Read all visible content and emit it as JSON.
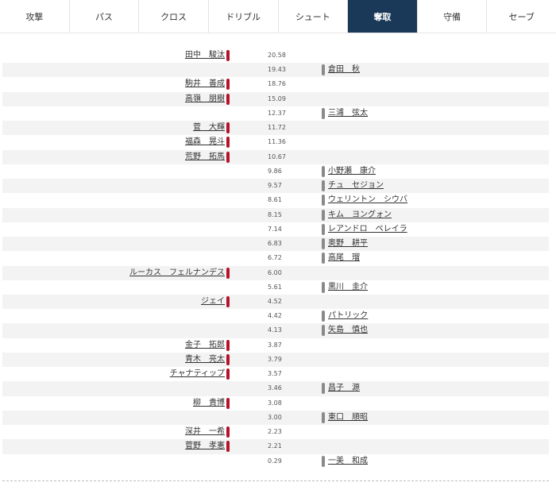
{
  "tabs": [
    {
      "label": "攻撃",
      "active": false
    },
    {
      "label": "パス",
      "active": false
    },
    {
      "label": "クロス",
      "active": false
    },
    {
      "label": "ドリブル",
      "active": false
    },
    {
      "label": "シュート",
      "active": false
    },
    {
      "label": "奪取",
      "active": true
    },
    {
      "label": "守備",
      "active": false
    },
    {
      "label": "セーブ",
      "active": false
    }
  ],
  "colors": {
    "active_tab_bg": "#1a3857",
    "left_team": "#b5132a",
    "right_team": "#8a8a8a"
  },
  "rows": [
    {
      "left": "田中　駿汰",
      "value": "20.58",
      "right": ""
    },
    {
      "left": "",
      "value": "19.43",
      "right": "倉田　秋"
    },
    {
      "left": "駒井　善成",
      "value": "18.76",
      "right": ""
    },
    {
      "left": "高嶺　朋樹",
      "value": "15.09",
      "right": ""
    },
    {
      "left": "",
      "value": "12.37",
      "right": "三浦　弦太"
    },
    {
      "left": "菅　大輝",
      "value": "11.72",
      "right": ""
    },
    {
      "left": "福森　晃斗",
      "value": "11.36",
      "right": ""
    },
    {
      "left": "荒野　拓馬",
      "value": "10.67",
      "right": ""
    },
    {
      "left": "",
      "value": "9.86",
      "right": "小野瀬　康介"
    },
    {
      "left": "",
      "value": "9.57",
      "right": "チュ　セジョン"
    },
    {
      "left": "",
      "value": "8.61",
      "right": "ウェリントン　シウバ"
    },
    {
      "left": "",
      "value": "8.15",
      "right": "キム　ヨングォン"
    },
    {
      "left": "",
      "value": "7.14",
      "right": "レアンドロ　ペレイラ"
    },
    {
      "left": "",
      "value": "6.83",
      "right": "奥野　耕平"
    },
    {
      "left": "",
      "value": "6.72",
      "right": "高尾　瑠"
    },
    {
      "left": "ルーカス　フェルナンデス",
      "value": "6.00",
      "right": ""
    },
    {
      "left": "",
      "value": "5.61",
      "right": "黒川　圭介"
    },
    {
      "left": "ジェイ",
      "value": "4.52",
      "right": ""
    },
    {
      "left": "",
      "value": "4.42",
      "right": "パトリック"
    },
    {
      "left": "",
      "value": "4.13",
      "right": "矢島　慎也"
    },
    {
      "left": "金子　拓郎",
      "value": "3.87",
      "right": ""
    },
    {
      "left": "青木　亮太",
      "value": "3.79",
      "right": ""
    },
    {
      "left": "チャナティップ",
      "value": "3.57",
      "right": ""
    },
    {
      "left": "",
      "value": "3.46",
      "right": "昌子　源"
    },
    {
      "left": "柳　貴博",
      "value": "3.08",
      "right": ""
    },
    {
      "left": "",
      "value": "3.00",
      "right": "東口　順昭"
    },
    {
      "left": "深井　一希",
      "value": "2.23",
      "right": ""
    },
    {
      "left": "菅野　孝憲",
      "value": "2.21",
      "right": ""
    },
    {
      "left": "",
      "value": "0.29",
      "right": "一美　和成"
    }
  ]
}
